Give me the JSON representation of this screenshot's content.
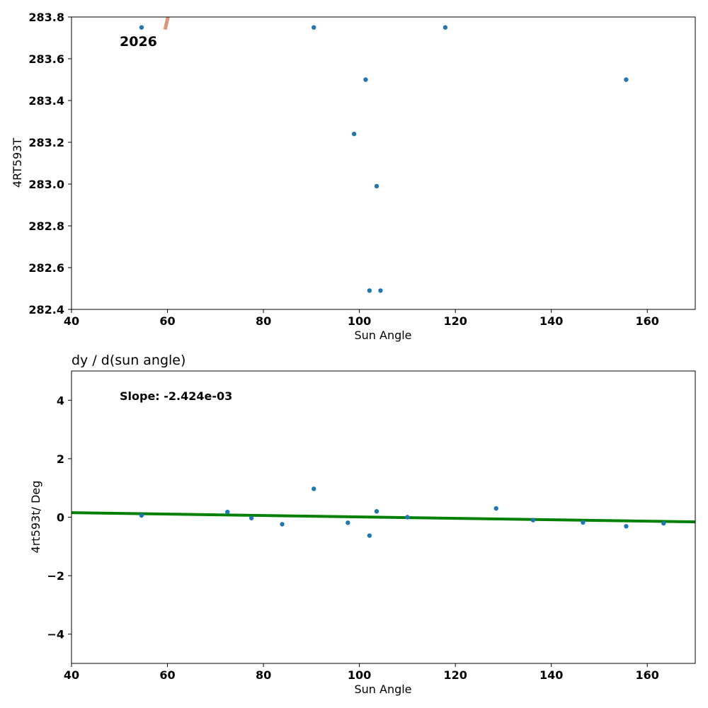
{
  "chart_data": [
    {
      "type": "scatter",
      "title": "",
      "xlabel": "Sun Angle",
      "ylabel": "4RT593T",
      "xlim": [
        40,
        170
      ],
      "ylim": [
        282.4,
        283.8
      ],
      "xticks": [
        40,
        60,
        80,
        100,
        120,
        140,
        160
      ],
      "yticks": [
        "282.4",
        "282.6",
        "282.8",
        "283.0",
        "283.2",
        "283.4",
        "283.6",
        "283.8"
      ],
      "grid": false,
      "annotation": "2026",
      "points": {
        "x": [
          54.6,
          90.5,
          117.9,
          101.3,
          155.6,
          98.9,
          103.6,
          102.1,
          104.4
        ],
        "y": [
          283.75,
          283.75,
          283.75,
          283.5,
          283.5,
          283.24,
          282.99,
          282.49,
          282.49
        ]
      },
      "trend_segment": {
        "x": [
          59.5,
          60.1
        ],
        "y": [
          283.74,
          283.8
        ],
        "color": "#e0957a"
      },
      "point_color": "#1f77b4"
    },
    {
      "type": "scatter",
      "title": "dy / d(sun angle)",
      "xlabel": "Sun Angle",
      "ylabel": "4rt593t/ Deg",
      "xlim": [
        40,
        170
      ],
      "ylim": [
        -5,
        5
      ],
      "xticks": [
        40,
        60,
        80,
        100,
        120,
        140,
        160
      ],
      "yticks": [
        "−4",
        "−2",
        "0",
        "2",
        "4"
      ],
      "grid": false,
      "annotation": "Slope: -2.424e-03",
      "points": {
        "x": [
          54.6,
          72.5,
          77.5,
          83.9,
          90.5,
          97.6,
          102.1,
          103.6,
          110.0,
          128.5,
          136.2,
          146.6,
          155.6,
          163.4
        ],
        "y": [
          0.06,
          0.18,
          -0.03,
          -0.24,
          0.97,
          -0.19,
          -0.63,
          0.2,
          0.0,
          0.3,
          -0.1,
          -0.18,
          -0.31,
          -0.21
        ]
      },
      "fit_line": {
        "x": [
          40,
          170
        ],
        "y": [
          0.155,
          -0.16
        ],
        "color": "#008000"
      },
      "point_color": "#1f77b4"
    }
  ]
}
